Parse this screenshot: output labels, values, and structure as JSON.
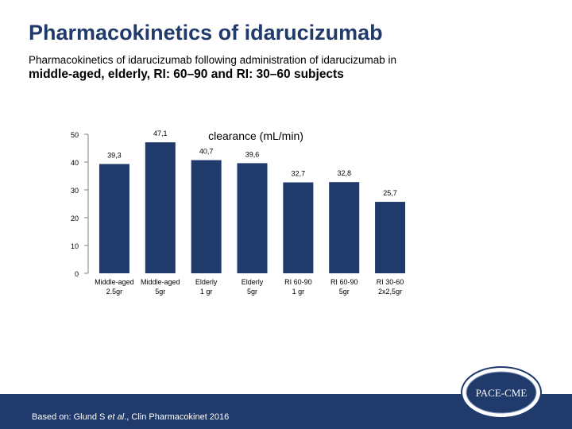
{
  "slide": {
    "title": "Pharmacokinetics of idarucizumab",
    "subtitle_line1": "Pharmacokinetics of idarucizumab following administration of idarucizumab in",
    "subtitle_line2": "middle-aged, elderly, RI: 60–90 and RI: 30–60 subjects"
  },
  "chart_data": {
    "type": "bar",
    "title": "clearance (mL/min)",
    "xlabel": "",
    "ylabel": "",
    "ylim": [
      0,
      50
    ],
    "yticks": [
      "0",
      "10",
      "20",
      "30",
      "40",
      "50"
    ],
    "categories": [
      [
        "Middle-aged",
        "2.5gr"
      ],
      [
        "Middle-aged",
        "5gr"
      ],
      [
        "Elderly",
        "1 gr"
      ],
      [
        "Elderly",
        "5gr"
      ],
      [
        "RI 60-90",
        "1 gr"
      ],
      [
        "RI 60-90",
        "5gr"
      ],
      [
        "RI 30-60",
        "2x2,5gr"
      ]
    ],
    "values": [
      39.3,
      47.1,
      40.7,
      39.6,
      32.7,
      32.8,
      25.7
    ],
    "value_labels": [
      "39,3",
      "47,1",
      "40,7",
      "39,6",
      "32,7",
      "32,8",
      "25,7"
    ],
    "bar_color": "#1f3a6b",
    "grid": false,
    "legend": "none"
  },
  "footer": {
    "source_prefix": "Based on: Glund S ",
    "source_italic": "et al",
    "source_suffix": "., Clin Pharmacokinet 2016",
    "color": "#1f3a6b"
  },
  "logo": {
    "text": "PACE-CME",
    "icon": "pace-cme-seal"
  }
}
